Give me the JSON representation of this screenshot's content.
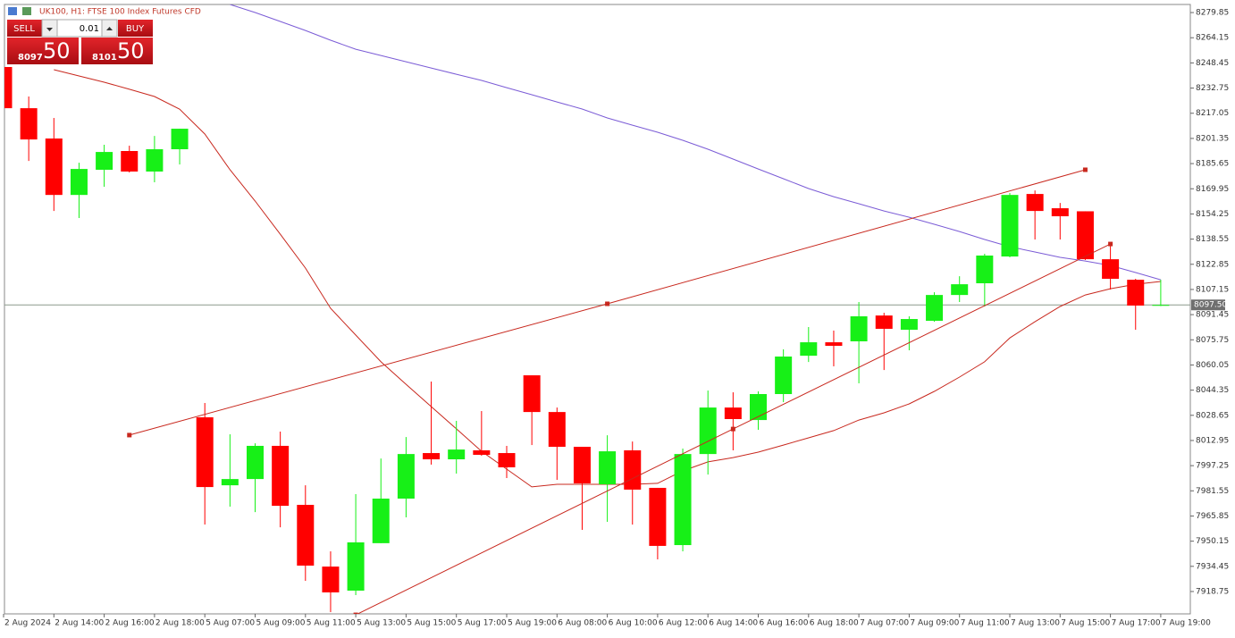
{
  "header": {
    "title": "UK100, H1:  FTSE 100 Index Futures CFD"
  },
  "trade_panel": {
    "sell": "SELL",
    "buy": "BUY",
    "lot": "0.01",
    "sell_price_main": "8097",
    "sell_price_pips": "50",
    "buy_price_main": "8101",
    "buy_price_pips": "50"
  },
  "chart_data": {
    "type": "candlestick",
    "categories": [
      "2 Aug 2024",
      null,
      "2 Aug 14:00",
      null,
      "2 Aug 16:00",
      null,
      "2 Aug 18:00",
      null,
      "5 Aug 07:00",
      null,
      "5 Aug 09:00",
      null,
      "5 Aug 11:00",
      null,
      "5 Aug 13:00",
      null,
      "5 Aug 15:00",
      null,
      "5 Aug 17:00",
      null,
      "5 Aug 19:00",
      null,
      "6 Aug 08:00",
      null,
      "6 Aug 10:00",
      null,
      "6 Aug 12:00",
      null,
      "6 Aug 14:00",
      null,
      "6 Aug 16:00",
      null,
      "6 Aug 18:00",
      null,
      "7 Aug 07:00",
      null,
      "7 Aug 09:00",
      null,
      "7 Aug 11:00",
      null,
      "7 Aug 13:00",
      null,
      "7 Aug 15:00",
      null,
      "7 Aug 17:00",
      null,
      "7 Aug 19:00"
    ],
    "open": [
      8245.9,
      8220.2,
      8201.3,
      8166.1,
      8181.8,
      8193.5,
      8180.7,
      8194.6,
      8027.4,
      7985.0,
      7988.9,
      8009.6,
      7972.8,
      7934.3,
      7919.3,
      7948.9,
      7976.7,
      8005.1,
      8001.2,
      8006.8,
      8005.1,
      8053.6,
      8030.7,
      8009.0,
      7985.6,
      8006.8,
      7983.4,
      7947.7,
      8004.5,
      8033.5,
      8025.7,
      8041.9,
      8065.8,
      8074.2,
      8074.8,
      8090.9,
      8082.0,
      8087.6,
      8103.7,
      8111.0,
      8127.7,
      8166.7,
      8157.8,
      8155.9,
      8126.0,
      8113.2,
      8097.1
    ],
    "high": [
      8248.6,
      8227.5,
      8214.1,
      8186.2,
      8197.4,
      8196.8,
      8202.9,
      8207.4,
      8036.3,
      8016.8,
      8011.2,
      8018.5,
      7985.0,
      7943.8,
      7979.5,
      8001.7,
      8015.1,
      8049.7,
      8025.2,
      8031.3,
      8009.6,
      8053.6,
      8033.5,
      8009.0,
      8016.2,
      8012.3,
      7983.4,
      8007.9,
      8044.1,
      8043.0,
      8043.6,
      8069.8,
      8083.7,
      8081.5,
      8099.3,
      8092.6,
      8090.4,
      8105.4,
      8115.4,
      8129.4,
      8167.3,
      8168.9,
      8161.1,
      8155.9,
      8134.4,
      8113.8,
      8113.2
    ],
    "low": [
      8220.2,
      8187.3,
      8156.1,
      8151.7,
      8171.2,
      8180.1,
      8174.0,
      8185.1,
      7960.5,
      7971.7,
      7968.3,
      7958.8,
      7925.4,
      7905.9,
      7916.5,
      7948.9,
      7965.0,
      7997.9,
      7992.3,
      8003.4,
      7989.5,
      8010.1,
      7988.4,
      7957.2,
      7962.2,
      7960.5,
      7938.8,
      7943.8,
      7991.7,
      8006.8,
      8019.6,
      8036.9,
      8061.9,
      8059.2,
      8048.6,
      8056.9,
      8069.2,
      8087.0,
      8099.3,
      8096.5,
      8127.2,
      8138.3,
      8138.3,
      8125.5,
      8107.1,
      8082.0,
      8096.8
    ],
    "close": [
      8220.2,
      8200.7,
      8166.1,
      8182.3,
      8192.9,
      8180.7,
      8194.6,
      8207.4,
      7983.9,
      7988.9,
      8009.6,
      7972.2,
      7934.9,
      7918.2,
      7949.4,
      7976.7,
      8004.5,
      8001.2,
      8007.3,
      8004.0,
      7996.2,
      8030.7,
      8009.0,
      7986.2,
      8006.2,
      7982.3,
      7947.2,
      8004.5,
      8033.5,
      8026.3,
      8041.9,
      8065.3,
      8074.2,
      8072.0,
      8090.4,
      8082.6,
      8088.7,
      8103.7,
      8110.4,
      8128.3,
      8166.1,
      8156.1,
      8152.8,
      8126.0,
      8113.8,
      8097.1,
      8097.5
    ],
    "up_color": "#17f017",
    "down_color": "#ff0000",
    "lines": [
      {
        "color": "#7b5cd6",
        "values": [
          null,
          null,
          null,
          null,
          null,
          null,
          null,
          null,
          null,
          8284.9,
          8279.9,
          8274.3,
          8268.7,
          8262.6,
          8257.0,
          8253.1,
          8249.2,
          8245.3,
          8241.4,
          8237.5,
          8233.0,
          8228.6,
          8224.1,
          8219.7,
          8214.1,
          8209.6,
          8205.2,
          8200.2,
          8194.6,
          8188.5,
          8182.3,
          8176.2,
          8170.1,
          8165.0,
          8160.6,
          8156.1,
          8152.2,
          8147.8,
          8143.3,
          8138.3,
          8133.8,
          8130.5,
          8127.2,
          8124.9,
          8122.1,
          8117.7,
          8113.2
        ]
      },
      {
        "color": "#c8281e",
        "values": [
          null,
          null,
          8244.2,
          8240.3,
          8236.4,
          8232.0,
          8227.5,
          8219.6,
          8204.1,
          8181.8,
          8162.3,
          8141.6,
          8120.5,
          8095.4,
          8078.7,
          8062.0,
          8048.0,
          8034.1,
          8020.2,
          8006.2,
          7995.1,
          7984.0,
          7985.6,
          7985.6,
          7985.6,
          7985.6,
          7986.2,
          7994.0,
          7999.6,
          8002.3,
          8005.7,
          8010.1,
          8014.6,
          8019.1,
          8025.7,
          8030.2,
          8035.8,
          8043.6,
          8052.5,
          8062.0,
          8076.9,
          8087.0,
          8096.5,
          8103.7,
          8107.6,
          8110.4,
          8112.1
        ]
      }
    ],
    "trendlines": [
      {
        "color": "#c8281e",
        "x": [
          5,
          24,
          43
        ],
        "values": [
          8016.3,
          8098.2,
          8181.8
        ]
      },
      {
        "color": "#c8281e",
        "x": [
          14,
          29,
          44
        ],
        "values": [
          7904.2,
          8020.1,
          8135.5
        ]
      }
    ],
    "current_price": {
      "value": 8097.5,
      "label": "8097.50"
    },
    "ylim": [
      7904.8,
      8284.9
    ],
    "yticks": [
      8279.85,
      8264.15,
      8248.45,
      8232.75,
      8217.05,
      8201.35,
      8185.65,
      8169.95,
      8154.25,
      8138.55,
      8122.85,
      8107.15,
      8091.45,
      8075.75,
      8060.05,
      8044.35,
      8028.65,
      8012.95,
      7997.25,
      7981.55,
      7965.85,
      7950.15,
      7934.45,
      7918.75
    ]
  }
}
